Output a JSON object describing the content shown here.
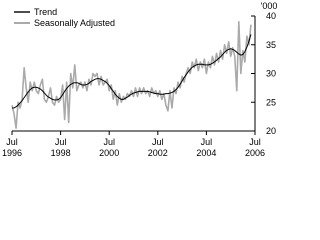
{
  "chart_data": {
    "type": "line",
    "y_unit": "'000",
    "x": [
      "1996-07",
      "1996-08",
      "1996-09",
      "1996-10",
      "1996-11",
      "1996-12",
      "1997-01",
      "1997-02",
      "1997-03",
      "1997-04",
      "1997-05",
      "1997-06",
      "1997-07",
      "1997-08",
      "1997-09",
      "1997-10",
      "1997-11",
      "1997-12",
      "1998-01",
      "1998-02",
      "1998-03",
      "1998-04",
      "1998-05",
      "1998-06",
      "1998-07",
      "1998-08",
      "1998-09",
      "1998-10",
      "1998-11",
      "1998-12",
      "1999-01",
      "1999-02",
      "1999-03",
      "1999-04",
      "1999-05",
      "1999-06",
      "1999-07",
      "1999-08",
      "1999-09",
      "1999-10",
      "1999-11",
      "1999-12",
      "2000-01",
      "2000-02",
      "2000-03",
      "2000-04",
      "2000-05",
      "2000-06",
      "2000-07",
      "2000-08",
      "2000-09",
      "2000-10",
      "2000-11",
      "2000-12",
      "2001-01",
      "2001-02",
      "2001-03",
      "2001-04",
      "2001-05",
      "2001-06",
      "2001-07",
      "2001-08",
      "2001-09",
      "2001-10",
      "2001-11",
      "2001-12",
      "2002-01",
      "2002-02",
      "2002-03",
      "2002-04",
      "2002-05",
      "2002-06",
      "2002-07",
      "2002-08",
      "2002-09",
      "2002-10",
      "2002-11",
      "2002-12",
      "2003-01",
      "2003-02",
      "2003-03",
      "2003-04",
      "2003-05",
      "2003-06",
      "2003-07",
      "2003-08",
      "2003-09",
      "2003-10",
      "2003-11",
      "2003-12",
      "2004-01",
      "2004-02",
      "2004-03",
      "2004-04",
      "2004-05",
      "2004-06",
      "2004-07",
      "2004-08",
      "2004-09",
      "2004-10",
      "2004-11",
      "2004-12",
      "2005-01",
      "2005-02",
      "2005-03",
      "2005-04",
      "2005-05",
      "2005-06",
      "2005-07",
      "2005-08",
      "2005-09",
      "2005-10",
      "2005-11",
      "2005-12",
      "2006-01",
      "2006-02",
      "2006-03",
      "2006-04",
      "2006-05"
    ],
    "series": [
      {
        "name": "Trend",
        "color": "#000000",
        "width": 1,
        "values": [
          24.0,
          24.0,
          24.2,
          24.5,
          24.9,
          25.3,
          25.8,
          26.3,
          26.8,
          27.2,
          27.5,
          27.6,
          27.6,
          27.5,
          27.3,
          27.0,
          26.6,
          26.2,
          25.9,
          25.7,
          25.5,
          25.4,
          25.4,
          25.5,
          25.8,
          26.3,
          26.9,
          27.4,
          27.8,
          28.1,
          28.3,
          28.4,
          28.4,
          28.3,
          28.1,
          28.0,
          28.0,
          28.1,
          28.3,
          28.6,
          28.8,
          29.0,
          29.1,
          29.1,
          29.0,
          28.8,
          28.6,
          28.3,
          27.9,
          27.4,
          26.9,
          26.4,
          26.0,
          25.7,
          25.5,
          25.5,
          25.7,
          25.9,
          26.2,
          26.4,
          26.6,
          26.7,
          26.8,
          26.9,
          26.9,
          26.9,
          26.9,
          26.9,
          26.8,
          26.7,
          26.6,
          26.5,
          26.5,
          26.4,
          26.4,
          26.4,
          26.5,
          26.5,
          26.6,
          26.7,
          26.9,
          27.2,
          27.6,
          28.1,
          28.7,
          29.3,
          29.8,
          30.3,
          30.7,
          31.1,
          31.3,
          31.5,
          31.6,
          31.6,
          31.6,
          31.5,
          31.5,
          31.5,
          31.6,
          31.8,
          32.0,
          32.3,
          32.6,
          32.9,
          33.3,
          33.7,
          34.0,
          34.2,
          34.3,
          34.2,
          34.0,
          33.7,
          33.4,
          33.2,
          33.3,
          33.8,
          34.6,
          35.6,
          36.8
        ]
      },
      {
        "name": "Seasonally Adjusted",
        "color": "#aaaaaa",
        "width": 1.6,
        "values": [
          24.5,
          23.0,
          20.5,
          25.0,
          24.0,
          25.5,
          31.0,
          27.5,
          25.0,
          28.5,
          27.0,
          28.5,
          27.0,
          26.5,
          28.0,
          29.0,
          25.5,
          25.0,
          26.0,
          27.5,
          25.0,
          24.5,
          26.0,
          25.0,
          25.5,
          28.0,
          22.0,
          28.5,
          21.5,
          30.0,
          27.5,
          31.5,
          27.0,
          28.0,
          28.5,
          27.5,
          28.5,
          27.0,
          29.0,
          28.0,
          30.0,
          29.5,
          30.0,
          28.0,
          29.5,
          28.0,
          28.5,
          29.0,
          27.0,
          28.0,
          25.5,
          27.0,
          24.5,
          26.5,
          25.0,
          26.0,
          25.5,
          26.5,
          26.0,
          27.0,
          26.0,
          27.5,
          26.0,
          27.5,
          26.5,
          27.5,
          26.5,
          27.0,
          26.0,
          27.5,
          26.5,
          27.0,
          26.0,
          27.0,
          25.5,
          26.5,
          24.5,
          23.5,
          27.0,
          24.0,
          27.5,
          26.5,
          28.5,
          27.5,
          29.5,
          28.5,
          30.0,
          31.0,
          30.0,
          32.0,
          31.0,
          32.5,
          30.5,
          32.0,
          31.0,
          32.5,
          30.0,
          32.0,
          31.0,
          33.0,
          31.5,
          33.5,
          32.0,
          34.0,
          32.5,
          35.0,
          33.5,
          35.5,
          33.0,
          34.5,
          33.0,
          27.0,
          39.0,
          30.0,
          34.0,
          32.0,
          36.5,
          35.0,
          38.5
        ]
      }
    ],
    "xlim": [
      "1996-07",
      "2006-07"
    ],
    "xticks": [
      {
        "value": "1996-07",
        "label": [
          "Jul",
          "1996"
        ]
      },
      {
        "value": "1998-07",
        "label": [
          "Jul",
          "1998"
        ]
      },
      {
        "value": "2000-07",
        "label": [
          "Jul",
          "2000"
        ]
      },
      {
        "value": "2002-07",
        "label": [
          "Jul",
          "2002"
        ]
      },
      {
        "value": "2004-07",
        "label": [
          "Jul",
          "2004"
        ]
      },
      {
        "value": "2006-07",
        "label": [
          "Jul",
          "2006"
        ]
      }
    ],
    "ylim": [
      20,
      40
    ],
    "yticks": [
      20,
      25,
      30,
      35,
      40
    ],
    "y_axis_side": "right",
    "legend": "top-left"
  }
}
